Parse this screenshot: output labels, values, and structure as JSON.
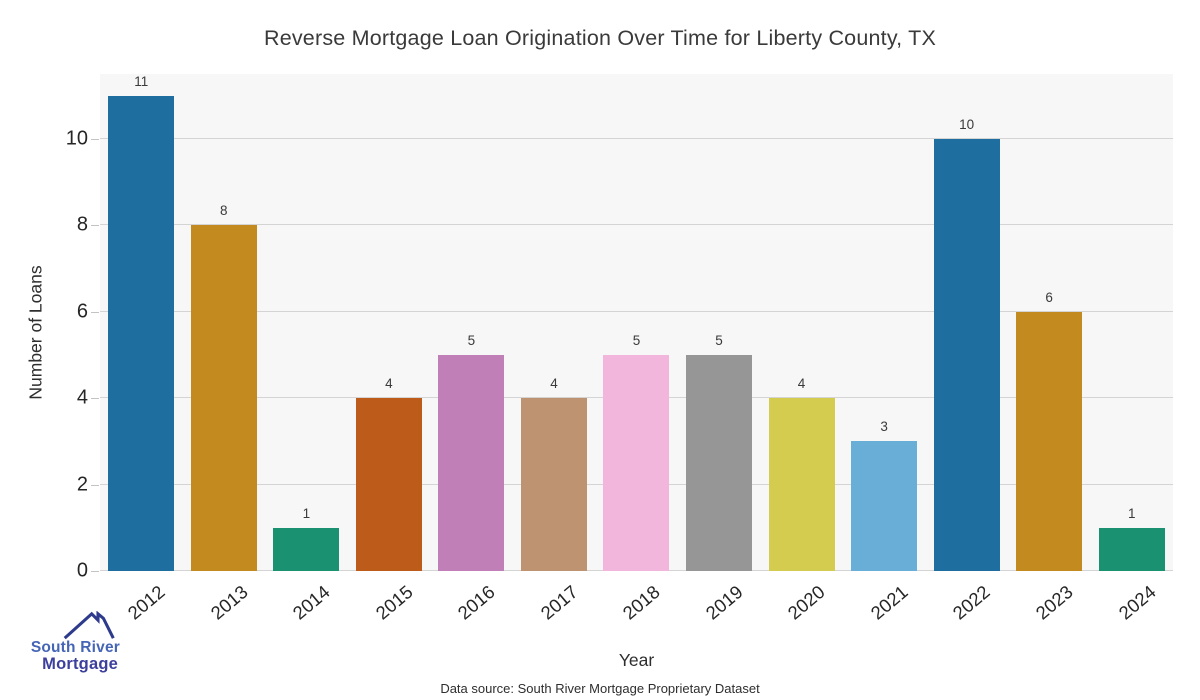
{
  "title": "Reverse Mortgage Loan Origination Over Time for Liberty County, TX",
  "chart_data": {
    "type": "bar",
    "title": "Reverse Mortgage Loan Origination Over Time for Liberty County, TX",
    "categories": [
      "2012",
      "2013",
      "2014",
      "2015",
      "2016",
      "2017",
      "2018",
      "2019",
      "2020",
      "2021",
      "2022",
      "2023",
      "2024"
    ],
    "values": [
      11,
      8,
      1,
      4,
      5,
      4,
      5,
      5,
      4,
      3,
      10,
      6,
      1
    ],
    "bar_colors": [
      "#1e6f9f",
      "#c38a1f",
      "#1a9170",
      "#bd5b1b",
      "#c17fb7",
      "#bd9372",
      "#f2b6dc",
      "#969696",
      "#d4cc4e",
      "#69aed6",
      "#1e6f9f",
      "#c38a1f",
      "#1a9170"
    ],
    "xlabel": "Year",
    "ylabel": "Number of Loans",
    "yticks": [
      0,
      2,
      4,
      6,
      8,
      10
    ],
    "ylim": [
      0,
      11.5
    ],
    "grid": true,
    "legend": "none",
    "value_labels_shown": true,
    "panel_background": "#f7f7f7",
    "gridline_color": "#d4d4d4"
  },
  "footer": {
    "source_note": "Data source: South River Mortgage Proprietary Dataset"
  },
  "logo": {
    "line1": "South River",
    "line2": "Mortgage",
    "roof_color": "#2e3a8c",
    "line1_color": "#4565b5",
    "line2_color": "#3c3f9b"
  }
}
